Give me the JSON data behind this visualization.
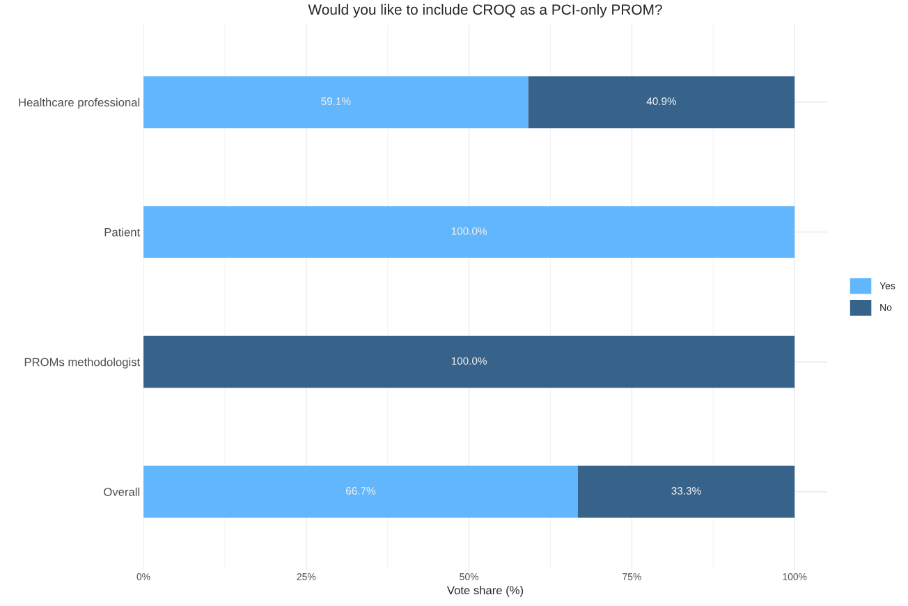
{
  "chart_data": {
    "type": "bar",
    "orientation": "horizontal",
    "stacked": true,
    "title": "Would you like to include CROQ as a PCI-only PROM?",
    "xlabel": "Vote share (%)",
    "categories": [
      "Healthcare professional",
      "Patient",
      "PROMs methodologist",
      "Overall"
    ],
    "series": [
      {
        "name": "Yes",
        "color": "#62b6fc",
        "values": [
          59.1,
          100.0,
          0,
          66.7
        ],
        "value_labels": [
          "59.1%",
          "100.0%",
          null,
          "66.7%"
        ]
      },
      {
        "name": "No",
        "color": "#37638a",
        "values": [
          40.9,
          0,
          100.0,
          33.3
        ],
        "value_labels": [
          "40.9%",
          null,
          "100.0%",
          "33.3%"
        ]
      }
    ],
    "xlim": [
      0,
      105
    ],
    "xticks": [
      {
        "value": 0,
        "label": "0%"
      },
      {
        "value": 25,
        "label": "25%"
      },
      {
        "value": 50,
        "label": "50%"
      },
      {
        "value": 75,
        "label": "75%"
      },
      {
        "value": 100,
        "label": "100%"
      }
    ],
    "grid": true,
    "legend": "right"
  }
}
